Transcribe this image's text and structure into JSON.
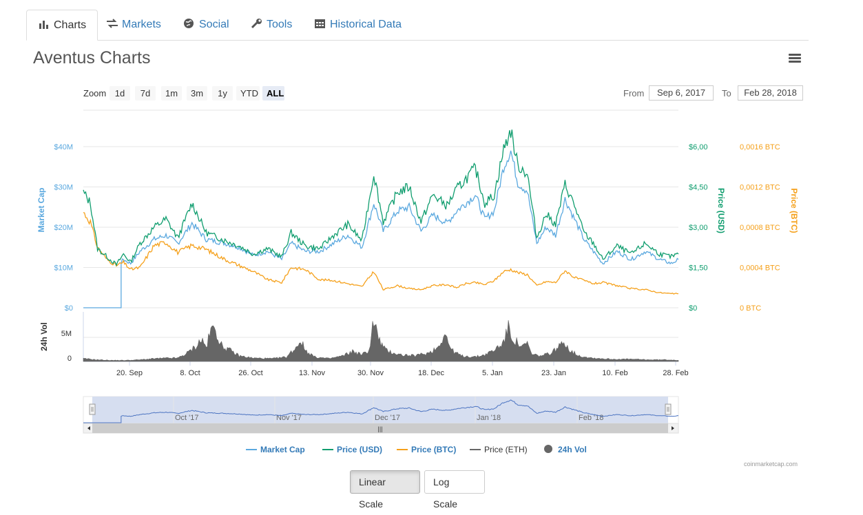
{
  "tabs": [
    {
      "label": "Charts",
      "icon": "bar-chart-icon",
      "active": true
    },
    {
      "label": "Markets",
      "icon": "exchange-icon",
      "active": false
    },
    {
      "label": "Social",
      "icon": "globe-icon",
      "active": false
    },
    {
      "label": "Tools",
      "icon": "wrench-icon",
      "active": false
    },
    {
      "label": "Historical Data",
      "icon": "calendar-icon",
      "active": false
    }
  ],
  "page_title": "Aventus Charts",
  "zoom": {
    "label": "Zoom",
    "options": [
      "1d",
      "7d",
      "1m",
      "3m",
      "1y",
      "YTD",
      "ALL"
    ],
    "selected": "ALL"
  },
  "range": {
    "from_label": "From",
    "from_value": "Sep 6, 2017",
    "to_label": "To",
    "to_value": "Feb 28, 2018"
  },
  "scale_buttons": {
    "linear": "Linear Scale",
    "log": "Log Scale",
    "selected": "linear"
  },
  "credits": "coinmarketcap.com",
  "colors": {
    "market_cap": "#5aa8df",
    "price_usd": "#0f9d6e",
    "price_btc": "#f5a01a",
    "price_eth": "#666666",
    "volume": "#666666",
    "navigator_fill": "#d2daee"
  },
  "chart_data": {
    "type": "line",
    "x_ticks": [
      "20. Sep",
      "8. Oct",
      "26. Oct",
      "13. Nov",
      "30. Nov",
      "18. Dec",
      "5. Jan",
      "23. Jan",
      "10. Feb",
      "28. Feb"
    ],
    "navigator_ticks": [
      "Oct '17",
      "Nov '17",
      "Dec '17",
      "Jan '18",
      "Feb '18"
    ],
    "axes": {
      "market_cap": {
        "label": "Market Cap",
        "ticks": [
          "$0",
          "$10M",
          "$20M",
          "$30M",
          "$40M"
        ],
        "range": [
          0,
          40000000
        ]
      },
      "price_usd": {
        "label": "Price (USD)",
        "ticks": [
          "$0",
          "$1,50",
          "$3,00",
          "$4,50",
          "$6,00"
        ],
        "range": [
          0,
          6
        ]
      },
      "price_btc": {
        "label": "Price (BTC)",
        "ticks": [
          "0 BTC",
          "0,0004 BTC",
          "0,0008 BTC",
          "0,0012 BTC",
          "0,0016 BTC"
        ],
        "range": [
          0,
          0.0016
        ]
      },
      "volume": {
        "label": "24h Vol",
        "ticks": [
          "0",
          "5M"
        ],
        "range": [
          0,
          5000000
        ]
      }
    },
    "legend": [
      "Market Cap",
      "Price (USD)",
      "Price (BTC)",
      "Price (ETH)",
      "24h Vol"
    ],
    "series": [
      {
        "name": "Price (USD)",
        "points": [
          [
            0,
            4.3
          ],
          [
            3,
            3.9
          ],
          [
            6,
            2.2
          ],
          [
            10,
            1.9
          ],
          [
            14,
            1.6
          ],
          [
            17,
            2.0
          ],
          [
            20,
            1.7
          ],
          [
            24,
            2.4
          ],
          [
            30,
            3.0
          ],
          [
            35,
            3.3
          ],
          [
            40,
            2.6
          ],
          [
            46,
            3.9
          ],
          [
            52,
            2.8
          ],
          [
            60,
            2.5
          ],
          [
            66,
            2.3
          ],
          [
            72,
            2.0
          ],
          [
            78,
            2.2
          ],
          [
            84,
            1.9
          ],
          [
            88,
            2.8
          ],
          [
            94,
            2.3
          ],
          [
            100,
            2.2
          ],
          [
            106,
            2.7
          ],
          [
            112,
            3.1
          ],
          [
            118,
            2.5
          ],
          [
            123,
            5.0
          ],
          [
            127,
            3.2
          ],
          [
            133,
            4.3
          ],
          [
            138,
            4.5
          ],
          [
            143,
            3.2
          ],
          [
            148,
            4.2
          ],
          [
            154,
            3.8
          ],
          [
            158,
            4.4
          ],
          [
            162,
            4.8
          ],
          [
            166,
            5.2
          ],
          [
            170,
            3.9
          ],
          [
            174,
            4.2
          ],
          [
            178,
            5.9
          ],
          [
            181,
            6.6
          ],
          [
            184,
            5.3
          ],
          [
            188,
            5.0
          ],
          [
            192,
            2.6
          ],
          [
            196,
            3.5
          ],
          [
            200,
            3.1
          ],
          [
            204,
            4.6
          ],
          [
            208,
            3.8
          ],
          [
            212,
            2.8
          ],
          [
            216,
            2.4
          ],
          [
            220,
            1.8
          ],
          [
            226,
            2.3
          ],
          [
            232,
            2.0
          ],
          [
            238,
            2.4
          ],
          [
            244,
            2.0
          ],
          [
            249,
            1.9
          ],
          [
            252,
            2.0
          ]
        ]
      },
      {
        "name": "Market Cap",
        "points": [
          [
            0,
            28
          ],
          [
            3,
            25
          ],
          [
            6,
            15
          ],
          [
            10,
            12
          ],
          [
            14,
            10
          ],
          [
            17,
            12
          ],
          [
            20,
            11
          ],
          [
            24,
            14
          ],
          [
            30,
            17
          ],
          [
            35,
            18
          ],
          [
            40,
            16
          ],
          [
            46,
            21
          ],
          [
            52,
            17
          ],
          [
            60,
            16
          ],
          [
            66,
            15
          ],
          [
            72,
            13
          ],
          [
            78,
            14
          ],
          [
            84,
            12
          ],
          [
            88,
            16
          ],
          [
            94,
            14
          ],
          [
            100,
            14
          ],
          [
            106,
            16
          ],
          [
            112,
            18
          ],
          [
            118,
            15
          ],
          [
            123,
            26
          ],
          [
            127,
            19
          ],
          [
            133,
            24
          ],
          [
            138,
            25
          ],
          [
            143,
            19
          ],
          [
            148,
            23
          ],
          [
            154,
            21
          ],
          [
            158,
            24
          ],
          [
            162,
            26
          ],
          [
            166,
            28
          ],
          [
            170,
            22
          ],
          [
            174,
            24
          ],
          [
            178,
            35
          ],
          [
            181,
            39
          ],
          [
            184,
            31
          ],
          [
            188,
            29
          ],
          [
            192,
            16
          ],
          [
            196,
            20
          ],
          [
            200,
            18
          ],
          [
            204,
            27
          ],
          [
            208,
            22
          ],
          [
            212,
            17
          ],
          [
            216,
            14
          ],
          [
            220,
            11
          ],
          [
            226,
            14
          ],
          [
            232,
            12
          ],
          [
            238,
            14
          ],
          [
            244,
            12
          ],
          [
            249,
            11
          ],
          [
            252,
            12
          ]
        ]
      },
      {
        "name": "Price (BTC)",
        "points": [
          [
            0,
            0.00095
          ],
          [
            3,
            0.00085
          ],
          [
            6,
            0.0006
          ],
          [
            10,
            0.00048
          ],
          [
            14,
            0.00042
          ],
          [
            17,
            0.00045
          ],
          [
            20,
            0.00038
          ],
          [
            24,
            0.0004
          ],
          [
            30,
            0.00062
          ],
          [
            35,
            0.00065
          ],
          [
            40,
            0.00055
          ],
          [
            46,
            0.00062
          ],
          [
            52,
            0.00058
          ],
          [
            60,
            0.00048
          ],
          [
            66,
            0.00042
          ],
          [
            72,
            0.00036
          ],
          [
            78,
            0.00028
          ],
          [
            84,
            0.00025
          ],
          [
            88,
            0.0004
          ],
          [
            94,
            0.00038
          ],
          [
            100,
            0.00028
          ],
          [
            106,
            0.00027
          ],
          [
            112,
            0.00024
          ],
          [
            118,
            0.00021
          ],
          [
            123,
            0.00036
          ],
          [
            127,
            0.00018
          ],
          [
            133,
            0.00022
          ],
          [
            138,
            0.00019
          ],
          [
            143,
            0.00018
          ],
          [
            148,
            0.00022
          ],
          [
            154,
            0.00023
          ],
          [
            158,
            0.0002
          ],
          [
            162,
            0.00024
          ],
          [
            166,
            0.00025
          ],
          [
            170,
            0.00023
          ],
          [
            174,
            0.00027
          ],
          [
            178,
            0.00036
          ],
          [
            181,
            0.00038
          ],
          [
            184,
            0.00035
          ],
          [
            188,
            0.00033
          ],
          [
            192,
            0.00022
          ],
          [
            196,
            0.00026
          ],
          [
            200,
            0.00025
          ],
          [
            204,
            0.00037
          ],
          [
            208,
            0.0003
          ],
          [
            212,
            0.00027
          ],
          [
            216,
            0.00024
          ],
          [
            220,
            0.00025
          ],
          [
            226,
            0.00022
          ],
          [
            232,
            0.00019
          ],
          [
            238,
            0.00018
          ],
          [
            244,
            0.00015
          ],
          [
            249,
            0.00014
          ],
          [
            252,
            0.00014
          ]
        ]
      },
      {
        "name": "24h Vol",
        "points": [
          [
            0,
            0.5
          ],
          [
            6,
            0.3
          ],
          [
            12,
            0.2
          ],
          [
            18,
            0.2
          ],
          [
            24,
            0.3
          ],
          [
            30,
            0.5
          ],
          [
            36,
            0.6
          ],
          [
            40,
            0.6
          ],
          [
            44,
            1.5
          ],
          [
            48,
            2.8
          ],
          [
            50,
            4.0
          ],
          [
            52,
            2.5
          ],
          [
            54,
            5.5
          ],
          [
            56,
            6.0
          ],
          [
            58,
            3.0
          ],
          [
            62,
            2.0
          ],
          [
            66,
            1.0
          ],
          [
            72,
            0.6
          ],
          [
            80,
            0.5
          ],
          [
            86,
            0.8
          ],
          [
            90,
            2.5
          ],
          [
            92,
            3.8
          ],
          [
            94,
            2.0
          ],
          [
            98,
            0.8
          ],
          [
            104,
            0.5
          ],
          [
            110,
            1.0
          ],
          [
            114,
            1.8
          ],
          [
            118,
            1.2
          ],
          [
            121,
            2.0
          ],
          [
            123,
            7.5
          ],
          [
            125,
            4.0
          ],
          [
            128,
            2.0
          ],
          [
            134,
            1.2
          ],
          [
            140,
            1.0
          ],
          [
            146,
            1.5
          ],
          [
            150,
            2.5
          ],
          [
            153,
            5.0
          ],
          [
            156,
            2.0
          ],
          [
            160,
            1.0
          ],
          [
            166,
            0.8
          ],
          [
            170,
            1.2
          ],
          [
            174,
            2.0
          ],
          [
            178,
            3.5
          ],
          [
            180,
            6.0
          ],
          [
            182,
            4.0
          ],
          [
            186,
            2.5
          ],
          [
            188,
            3.2
          ],
          [
            190,
            1.2
          ],
          [
            194,
            1.0
          ],
          [
            198,
            1.5
          ],
          [
            204,
            3.5
          ],
          [
            206,
            2.0
          ],
          [
            210,
            1.0
          ],
          [
            216,
            0.6
          ],
          [
            224,
            0.4
          ],
          [
            232,
            0.4
          ],
          [
            240,
            0.3
          ],
          [
            248,
            0.3
          ],
          [
            252,
            0.2
          ]
        ]
      }
    ]
  }
}
